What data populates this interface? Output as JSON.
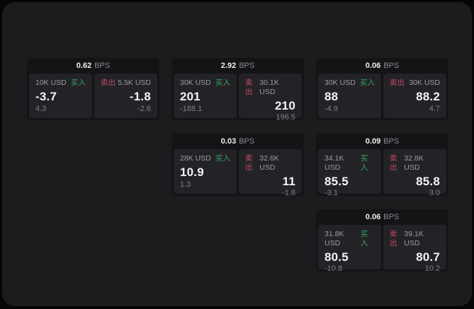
{
  "labels": {
    "buy": "买入",
    "sell": "卖出",
    "bps": "BPS"
  },
  "colors": {
    "outer_bg": "#060608",
    "panel_bg": "#1c1c1e",
    "card_bg": "#141416",
    "subpanel_bg": "#232327",
    "buy_green": "#3aa462",
    "sell_red": "#c14a62",
    "text_primary": "#f3f3f5",
    "text_secondary": "#9b9ba1",
    "text_muted": "#808086"
  },
  "cards": [
    {
      "bps": "0.62",
      "buy": {
        "notional": "10K USD",
        "price": "-3.7",
        "delta": "4.3"
      },
      "sell": {
        "notional": "5.5K USD",
        "price": "-1.8",
        "delta": "-2.6"
      }
    },
    {
      "bps": "2.92",
      "buy": {
        "notional": "30K USD",
        "price": "201",
        "delta": "-188.1"
      },
      "sell": {
        "notional": "30.1K USD",
        "price": "210",
        "delta": "196.5"
      }
    },
    {
      "bps": "0.06",
      "buy": {
        "notional": "30K USD",
        "price": "88",
        "delta": "-4.9"
      },
      "sell": {
        "notional": "30K USD",
        "price": "88.2",
        "delta": "4.7"
      }
    },
    {
      "bps": "0.03",
      "buy": {
        "notional": "28K USD",
        "price": "10.9",
        "delta": "1.3"
      },
      "sell": {
        "notional": "32.6K USD",
        "price": "11",
        "delta": "-1.8"
      }
    },
    {
      "bps": "0.09",
      "buy": {
        "notional": "34.1K USD",
        "price": "85.5",
        "delta": "-3.1"
      },
      "sell": {
        "notional": "32.8K USD",
        "price": "85.8",
        "delta": "3.0"
      }
    },
    {
      "bps": "0.06",
      "buy": {
        "notional": "31.8K USD",
        "price": "80.5",
        "delta": "-10.8"
      },
      "sell": {
        "notional": "39.1K USD",
        "price": "80.7",
        "delta": "10.2"
      }
    }
  ]
}
